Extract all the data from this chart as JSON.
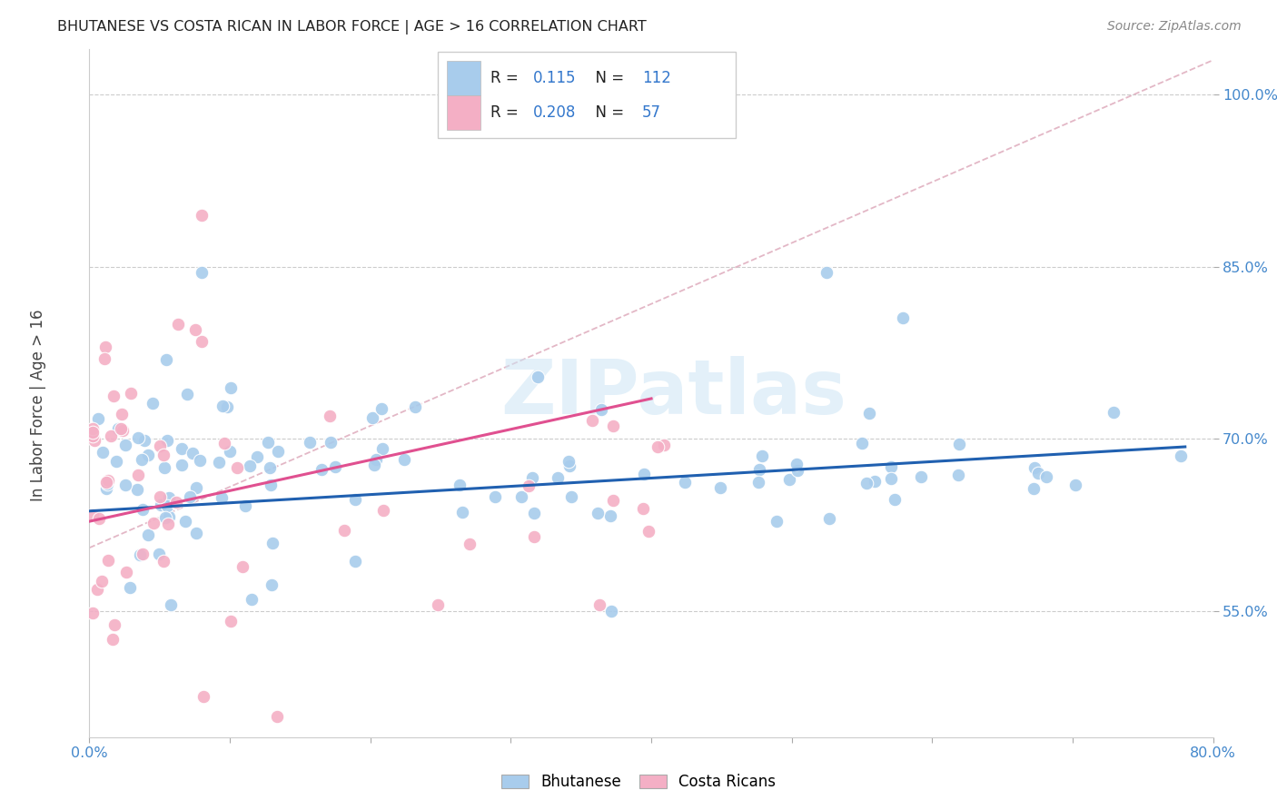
{
  "title": "BHUTANESE VS COSTA RICAN IN LABOR FORCE | AGE > 16 CORRELATION CHART",
  "source": "Source: ZipAtlas.com",
  "ylabel": "In Labor Force | Age > 16",
  "xlim": [
    0.0,
    0.8
  ],
  "ylim": [
    0.44,
    1.04
  ],
  "xtick_positions": [
    0.0,
    0.1,
    0.2,
    0.3,
    0.4,
    0.5,
    0.6,
    0.7,
    0.8
  ],
  "xticklabels": [
    "0.0%",
    "",
    "",
    "",
    "",
    "",
    "",
    "",
    "80.0%"
  ],
  "ytick_positions": [
    0.55,
    0.7,
    0.85,
    1.0
  ],
  "ytick_labels": [
    "55.0%",
    "70.0%",
    "85.0%",
    "100.0%"
  ],
  "blue_R": 0.115,
  "blue_N": 112,
  "pink_R": 0.208,
  "pink_N": 57,
  "blue_color": "#a8ccec",
  "pink_color": "#f4afc5",
  "blue_line_color": "#2060b0",
  "pink_line_color": "#e05090",
  "dashed_line_color": "#e0b0c0",
  "grid_color": "#cccccc",
  "title_color": "#222222",
  "tick_color": "#4488cc",
  "watermark": "ZIPatlas",
  "blue_line_x": [
    0.0,
    0.78
  ],
  "blue_line_y": [
    0.637,
    0.693
  ],
  "pink_line_x": [
    0.0,
    0.4
  ],
  "pink_line_y": [
    0.628,
    0.735
  ],
  "diag_line_x": [
    0.0,
    0.8
  ],
  "diag_line_y": [
    0.605,
    1.03
  ],
  "figsize": [
    14.06,
    8.92
  ],
  "dpi": 100
}
